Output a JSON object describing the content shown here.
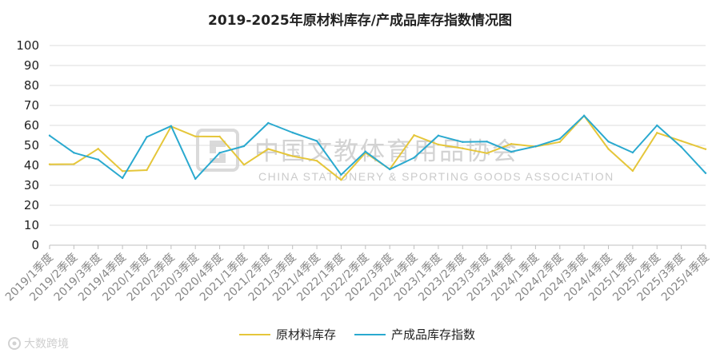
{
  "chart_data": {
    "type": "line",
    "title": "2019-2025年原材料库存/产成品库存指数情况图",
    "xlabel": "",
    "ylabel": "",
    "ylim": [
      0,
      100
    ],
    "yticks": [
      0,
      10,
      20,
      30,
      40,
      50,
      60,
      70,
      80,
      90,
      100
    ],
    "grid": true,
    "legend_position": "bottom",
    "categories": [
      "2019/1季度",
      "2019/2季度",
      "2019/3季度",
      "2019/4季度",
      "2020/1季度",
      "2020/2季度",
      "2020/3季度",
      "2020/4季度",
      "2021/1季度",
      "2021/2季度",
      "2021/3季度",
      "2021/4季度",
      "2022/1季度",
      "2022/2季度",
      "2022/3季度",
      "2022/4季度",
      "2023/1季度",
      "2023/2季度",
      "2023/3季度",
      "2023/4季度",
      "2024/1季度",
      "2024/2季度",
      "2024/3季度",
      "2024/4季度",
      "2025/1季度",
      "2025/2季度",
      "2025/3季度",
      "2025/4季度"
    ],
    "series": [
      {
        "name": "原材料库存",
        "color": "#e5c63a",
        "values": [
          40.5,
          40.6,
          48.3,
          37.1,
          37.6,
          59.5,
          54.5,
          54.4,
          40.3,
          48.2,
          44.6,
          42.3,
          32.7,
          46.3,
          38.1,
          55.1,
          50.4,
          48.5,
          46.1,
          50.7,
          49.4,
          51.7,
          64.8,
          48.2,
          37.2,
          56.3,
          52.2,
          48.1
        ]
      },
      {
        "name": "产成品库存指数",
        "color": "#2aa9cf",
        "values": [
          54.9,
          46.3,
          42.9,
          33.6,
          54.2,
          59.7,
          33.2,
          46.3,
          49.6,
          61.2,
          56.4,
          52.2,
          35.3,
          46.9,
          38.0,
          43.8,
          54.9,
          51.7,
          51.9,
          46.8,
          49.5,
          53.3,
          64.9,
          51.9,
          46.4,
          60.0,
          49.2,
          36.1
        ]
      }
    ]
  },
  "watermark": {
    "chinese": "中国文教体育用品协会",
    "english": "CHINA STATIONERY & SPORTING GOODS ASSOCIATION"
  },
  "brand": {
    "name": "大数跨境",
    "icon": "brand-logo-icon"
  }
}
